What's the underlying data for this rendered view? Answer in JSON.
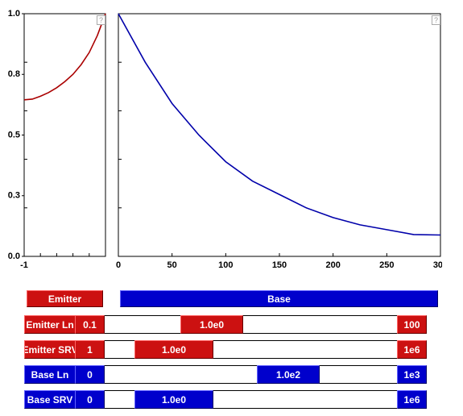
{
  "chart_data": [
    {
      "type": "line",
      "color": "#aa0000",
      "xlim": [
        -1,
        0
      ],
      "ylim": [
        0,
        1
      ],
      "xticks": [
        -1
      ],
      "xminor_ticks": [
        -0.8,
        -0.6,
        -0.4,
        -0.2
      ],
      "yticks": [
        {
          "value": 1,
          "label": "1.0"
        },
        {
          "value": 0.75,
          "label": "0.8"
        },
        {
          "value": 0.5,
          "label": "0.5"
        },
        {
          "value": 0.25,
          "label": "0.3"
        },
        {
          "value": 0,
          "label": "0.0"
        }
      ],
      "yminor_ticks": [
        0.8,
        0.6,
        0.4,
        0.2
      ],
      "x": [
        -1,
        -0.9,
        -0.8,
        -0.7,
        -0.6,
        -0.5,
        -0.4,
        -0.3,
        -0.2,
        -0.1,
        0
      ],
      "values": [
        0.645,
        0.648,
        0.66,
        0.675,
        0.695,
        0.72,
        0.75,
        0.79,
        0.84,
        0.91,
        1.0
      ]
    },
    {
      "type": "line",
      "color": "#0000aa",
      "xlim": [
        0,
        300
      ],
      "ylim": [
        0,
        1
      ],
      "xticks": [
        0,
        50,
        100,
        150,
        200,
        250,
        300
      ],
      "yminor_ticks": [
        0.8,
        0.6,
        0.4,
        0.2
      ],
      "x": [
        0,
        25,
        50,
        75,
        100,
        125,
        150,
        175,
        200,
        225,
        250,
        275,
        300
      ],
      "values": [
        1.0,
        0.8,
        0.63,
        0.5,
        0.39,
        0.31,
        0.255,
        0.2,
        0.16,
        0.13,
        0.11,
        0.09,
        0.088
      ]
    }
  ],
  "controls": {
    "buttons": [
      "Emitter",
      "Base"
    ],
    "sliders": [
      {
        "label": "Emitter Ln",
        "min": "0.1",
        "value": "1.0e0",
        "max": "100"
      },
      {
        "label": "Emitter SRV",
        "min": "1",
        "value": "1.0e0",
        "max": "1e6"
      },
      {
        "label": "Base Ln",
        "min": "0",
        "value": "1.0e2",
        "max": "1e3"
      },
      {
        "label": "Base SRV",
        "min": "0",
        "value": "1.0e0",
        "max": "1e6"
      }
    ]
  }
}
